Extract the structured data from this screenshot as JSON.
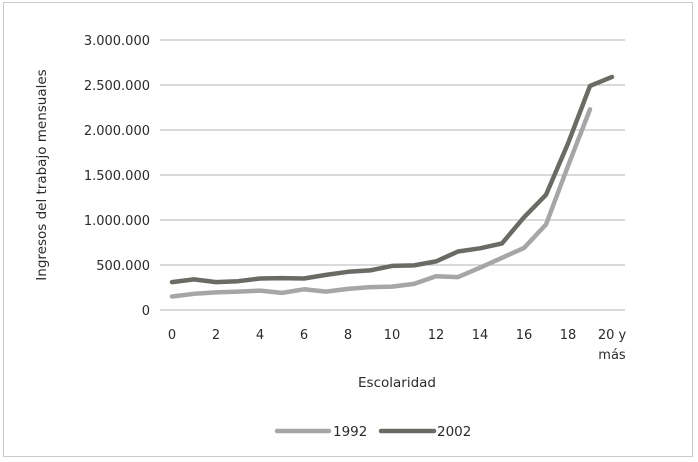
{
  "chart_data": {
    "type": "line",
    "title": "",
    "xlabel": "Escolaridad",
    "ylabel": "Ingresos del trabajo mensuales",
    "ylim": [
      0,
      3000000
    ],
    "grid": true,
    "legend_position": "bottom",
    "y_ticks": [
      "0",
      "500.000",
      "1.000.000",
      "1.500.000",
      "2.000.000",
      "2.500.000",
      "3.000.000"
    ],
    "x": [
      0,
      1,
      2,
      3,
      4,
      5,
      6,
      7,
      8,
      9,
      10,
      11,
      12,
      13,
      14,
      15,
      16,
      17,
      18,
      19,
      20
    ],
    "x_tick_labels": [
      "0",
      "2",
      "4",
      "6",
      "8",
      "10",
      "12",
      "14",
      "16",
      "18"
    ],
    "x_last_label": [
      "20 y",
      "más"
    ],
    "series": [
      {
        "name": "1992",
        "color": "#a6a6a6",
        "values": [
          150000,
          180000,
          195000,
          205000,
          215000,
          190000,
          230000,
          205000,
          235000,
          255000,
          260000,
          290000,
          375000,
          365000,
          470000,
          580000,
          690000,
          950000,
          1600000,
          2230000,
          null
        ]
      },
      {
        "name": "2002",
        "color": "#6b6b66",
        "values": [
          310000,
          340000,
          310000,
          320000,
          350000,
          355000,
          350000,
          390000,
          425000,
          440000,
          490000,
          495000,
          540000,
          650000,
          685000,
          740000,
          1030000,
          1280000,
          1850000,
          2490000,
          2590000
        ]
      }
    ]
  }
}
